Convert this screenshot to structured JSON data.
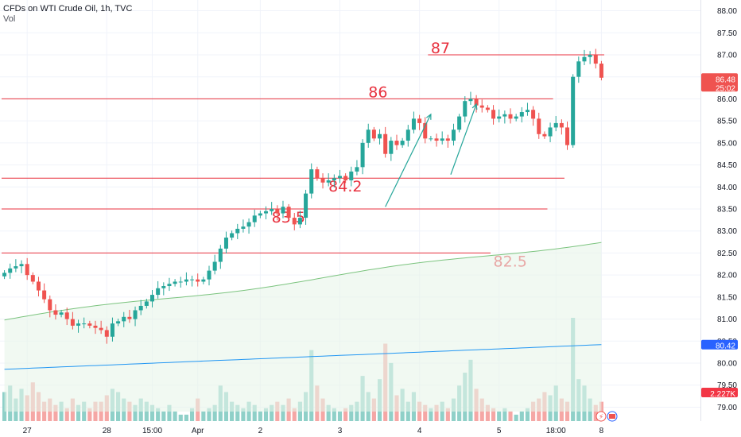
{
  "header": {
    "symbol": "CFDs on WTI Crude Oil, 1h, TVC",
    "volume_label": "Vol"
  },
  "colors": {
    "up": "#26a69a",
    "down": "#ef5350",
    "level_line": "#e8323f",
    "ma_green": "#7cc47f",
    "ma_blue": "#2196f3",
    "arrow": "#26a69a"
  },
  "price_tags": {
    "last_price": "86.48",
    "countdown": "25:02",
    "ma_value": "80.42",
    "volume_value": "2.227K"
  },
  "chart_data": {
    "type": "candlestick",
    "y_ticks": [
      "88.00",
      "87.50",
      "87.00",
      "86.50",
      "86.00",
      "85.50",
      "85.00",
      "84.50",
      "84.00",
      "83.50",
      "83.00",
      "82.50",
      "82.00",
      "81.50",
      "81.00",
      "80.50",
      "80.00",
      "79.50",
      "79.00"
    ],
    "ylim": [
      78.9,
      88.1
    ],
    "x_ticks": [
      "27",
      "28",
      "15:00",
      "Apr",
      "2",
      "3",
      "4",
      "5",
      "18:00",
      "8"
    ],
    "x_tick_bars": [
      4,
      18,
      26,
      34,
      45,
      59,
      73,
      87,
      97,
      105
    ],
    "n_bars": 106,
    "levels": [
      {
        "label": "87",
        "value": 87.0,
        "from": 75,
        "to": 105
      },
      {
        "label": "86",
        "value": 86.0,
        "from": 0,
        "to": 96
      },
      {
        "label": "84.2",
        "value": 84.2,
        "from": 0,
        "to": 98
      },
      {
        "label": "83.5",
        "value": 83.5,
        "from": 0,
        "to": 95
      },
      {
        "label": "82.5",
        "value": 82.5,
        "from": 0,
        "to": 85
      }
    ],
    "close": [
      82.05,
      82.15,
      82.2,
      82.25,
      82.0,
      81.85,
      81.65,
      81.45,
      81.2,
      81.1,
      81.15,
      81.0,
      80.85,
      80.9,
      80.9,
      80.85,
      80.8,
      80.75,
      80.6,
      80.9,
      80.95,
      81.05,
      81.0,
      81.2,
      81.3,
      81.4,
      81.55,
      81.7,
      81.75,
      81.8,
      81.85,
      81.85,
      81.9,
      81.9,
      81.85,
      81.9,
      82.1,
      82.3,
      82.6,
      82.85,
      82.95,
      83.05,
      83.1,
      83.2,
      83.35,
      83.4,
      83.45,
      83.5,
      83.4,
      83.55,
      83.3,
      83.15,
      83.3,
      83.85,
      84.4,
      84.2,
      84.1,
      84.15,
      84.2,
      84.25,
      84.15,
      84.35,
      84.45,
      85.0,
      85.3,
      85.1,
      85.2,
      84.75,
      85.05,
      84.95,
      85.05,
      85.3,
      85.55,
      85.45,
      85.1,
      85.1,
      85.05,
      85.1,
      85.05,
      85.3,
      85.6,
      85.95,
      86.0,
      85.85,
      85.8,
      85.75,
      85.55,
      85.6,
      85.65,
      85.55,
      85.6,
      85.7,
      85.75,
      85.55,
      85.2,
      85.15,
      85.35,
      85.45,
      85.35,
      84.95,
      86.5,
      86.85,
      86.95,
      87.0,
      86.8,
      86.48
    ],
    "volume_scale_max": 1.6,
    "volume": [
      0.45,
      0.55,
      0.35,
      0.5,
      0.4,
      0.6,
      0.45,
      0.3,
      0.35,
      0.25,
      0.3,
      0.2,
      0.35,
      0.25,
      0.3,
      0.2,
      0.3,
      0.3,
      0.4,
      0.5,
      0.45,
      0.35,
      0.3,
      0.25,
      0.35,
      0.3,
      0.25,
      0.2,
      0.15,
      0.25,
      0.15,
      0.1,
      0.1,
      0.2,
      0.35,
      0.15,
      0.2,
      0.25,
      0.55,
      0.45,
      0.3,
      0.25,
      0.2,
      0.3,
      0.25,
      0.15,
      0.2,
      0.25,
      0.3,
      0.25,
      0.35,
      0.2,
      0.3,
      0.45,
      1.1,
      0.55,
      0.35,
      0.25,
      0.2,
      0.15,
      0.2,
      0.25,
      0.3,
      0.7,
      0.45,
      0.35,
      0.65,
      1.2,
      0.9,
      0.4,
      0.5,
      0.3,
      0.45,
      0.3,
      0.25,
      0.2,
      0.25,
      0.3,
      0.2,
      0.35,
      0.55,
      0.75,
      0.95,
      0.5,
      0.35,
      0.25,
      0.2,
      0.15,
      0.2,
      0.15,
      0.1,
      0.15,
      0.2,
      0.3,
      0.35,
      0.45,
      0.4,
      0.55,
      0.35,
      0.3,
      1.6,
      0.65,
      0.55,
      0.35,
      0.25,
      0.3
    ]
  }
}
